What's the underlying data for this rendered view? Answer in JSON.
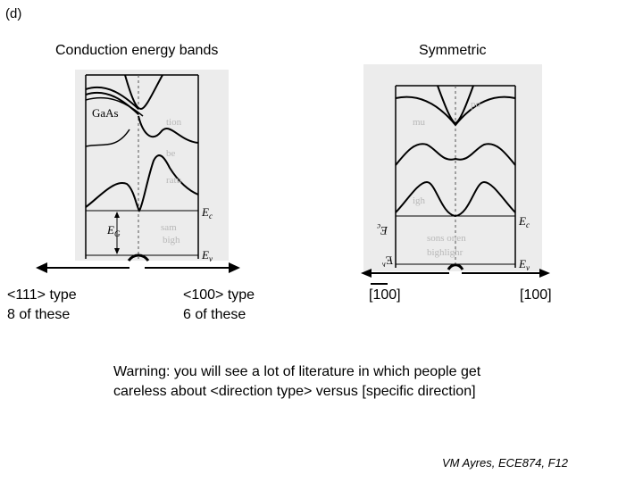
{
  "slide": {
    "panel_tag": "(d)",
    "left_title": "Conduction energy bands",
    "right_title": "Symmetric",
    "left_figure": {
      "material_label": "GaAs",
      "ec_label": "E",
      "ec_sub": "c",
      "eg_label": "E",
      "eg_sub": "G",
      "ev_label": "E",
      "ev_sub": "v"
    },
    "right_figure": {
      "ec_label": "E",
      "ec_sub": "c",
      "ev_label": "E",
      "ev_sub": "v"
    },
    "dir_111_line1": "<111> type",
    "dir_111_line2": "8 of these",
    "dir_100_line1": "<100> type",
    "dir_100_line2": "6 of these",
    "neg_100_label": "[100]",
    "pos_100_label": "[100]",
    "warning_line1": "Warning: you will see a lot of literature in which people get",
    "warning_line2": "careless about <direction type> versus [specific direction]",
    "footer": "VM Ayres, ECE874, F12"
  }
}
